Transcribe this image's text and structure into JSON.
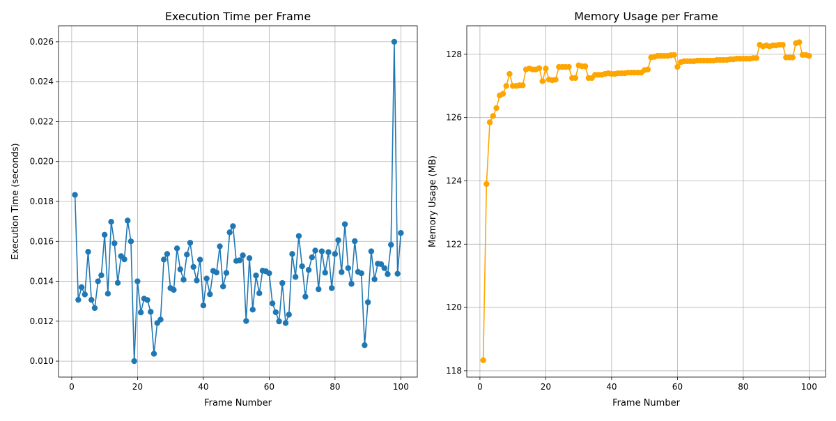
{
  "chart_data": [
    {
      "type": "line",
      "title": "Execution Time per Frame",
      "xlabel": "Frame Number",
      "ylabel": "Execution Time (seconds)",
      "xlim": [
        -4,
        105
      ],
      "ylim": [
        0.0092,
        0.0268
      ],
      "xticks": [
        0,
        20,
        40,
        60,
        80,
        100
      ],
      "xtick_labels": [
        "0",
        "20",
        "40",
        "60",
        "80",
        "100"
      ],
      "yticks": [
        0.01,
        0.012,
        0.014,
        0.016,
        0.018,
        0.02,
        0.022,
        0.024,
        0.026
      ],
      "ytick_labels": [
        "0.010",
        "0.012",
        "0.014",
        "0.016",
        "0.018",
        "0.020",
        "0.022",
        "0.024",
        "0.026"
      ],
      "grid": true,
      "color": "#1f77b4",
      "marker": "circle",
      "x": [
        1,
        2,
        3,
        4,
        5,
        6,
        7,
        8,
        9,
        10,
        11,
        12,
        13,
        14,
        15,
        16,
        17,
        18,
        19,
        20,
        21,
        22,
        23,
        24,
        25,
        26,
        27,
        28,
        29,
        30,
        31,
        32,
        33,
        34,
        35,
        36,
        37,
        38,
        39,
        40,
        41,
        42,
        43,
        44,
        45,
        46,
        47,
        48,
        49,
        50,
        51,
        52,
        53,
        54,
        55,
        56,
        57,
        58,
        59,
        60,
        61,
        62,
        63,
        64,
        65,
        66,
        67,
        68,
        69,
        70,
        71,
        72,
        73,
        74,
        75,
        76,
        77,
        78,
        79,
        80,
        81,
        82,
        83,
        84,
        85,
        86,
        87,
        88,
        89,
        90,
        91,
        92,
        93,
        94,
        95,
        96,
        97,
        98,
        99,
        100
      ],
      "y": [
        0.01833,
        0.01307,
        0.0137,
        0.01334,
        0.01548,
        0.01307,
        0.01266,
        0.014,
        0.0143,
        0.01633,
        0.01338,
        0.01698,
        0.0159,
        0.01392,
        0.01526,
        0.0151,
        0.01704,
        0.016,
        0.01,
        0.014,
        0.01244,
        0.01313,
        0.01306,
        0.01247,
        0.01037,
        0.01191,
        0.01208,
        0.01509,
        0.01537,
        0.01366,
        0.01357,
        0.01565,
        0.0146,
        0.01408,
        0.01534,
        0.01593,
        0.01472,
        0.01404,
        0.01508,
        0.01279,
        0.01414,
        0.01335,
        0.01452,
        0.01444,
        0.01575,
        0.01374,
        0.01442,
        0.01645,
        0.01676,
        0.01502,
        0.01505,
        0.0153,
        0.01201,
        0.01516,
        0.01258,
        0.01429,
        0.0134,
        0.01453,
        0.0145,
        0.0144,
        0.01289,
        0.01245,
        0.01199,
        0.01391,
        0.01191,
        0.01233,
        0.01537,
        0.01422,
        0.01627,
        0.01475,
        0.01323,
        0.01457,
        0.0152,
        0.01554,
        0.0136,
        0.0155,
        0.01443,
        0.01546,
        0.01366,
        0.01537,
        0.01606,
        0.01446,
        0.01686,
        0.01466,
        0.01387,
        0.01601,
        0.01447,
        0.0144,
        0.0108,
        0.01295,
        0.0155,
        0.0141,
        0.01488,
        0.01486,
        0.01466,
        0.01436,
        0.01583,
        0.026,
        0.01438,
        0.01642
      ]
    },
    {
      "type": "line",
      "title": "Memory Usage per Frame",
      "xlabel": "Frame Number",
      "ylabel": "Memory Usage (MB)",
      "xlim": [
        -4,
        105
      ],
      "ylim": [
        117.8,
        128.9
      ],
      "xticks": [
        0,
        20,
        40,
        60,
        80,
        100
      ],
      "xtick_labels": [
        "0",
        "20",
        "40",
        "60",
        "80",
        "100"
      ],
      "yticks": [
        118,
        120,
        122,
        124,
        126,
        128
      ],
      "ytick_labels": [
        "118",
        "120",
        "122",
        "124",
        "126",
        "128"
      ],
      "grid": true,
      "color": "#ffa500",
      "marker": "circle",
      "x": [
        1,
        2,
        3,
        4,
        5,
        6,
        7,
        8,
        9,
        10,
        11,
        12,
        13,
        14,
        15,
        16,
        17,
        18,
        19,
        20,
        21,
        22,
        23,
        24,
        25,
        26,
        27,
        28,
        29,
        30,
        31,
        32,
        33,
        34,
        35,
        36,
        37,
        38,
        39,
        40,
        41,
        42,
        43,
        44,
        45,
        46,
        47,
        48,
        49,
        50,
        51,
        52,
        53,
        54,
        55,
        56,
        57,
        58,
        59,
        60,
        61,
        62,
        63,
        64,
        65,
        66,
        67,
        68,
        69,
        70,
        71,
        72,
        73,
        74,
        75,
        76,
        77,
        78,
        79,
        80,
        81,
        82,
        83,
        84,
        85,
        86,
        87,
        88,
        89,
        90,
        91,
        92,
        93,
        94,
        95,
        96,
        97,
        98,
        99,
        100
      ],
      "y": [
        118.33,
        123.9,
        125.85,
        126.05,
        126.3,
        126.7,
        126.75,
        127.0,
        127.38,
        127.0,
        127.0,
        127.02,
        127.02,
        127.52,
        127.55,
        127.52,
        127.52,
        127.56,
        127.15,
        127.55,
        127.2,
        127.18,
        127.2,
        127.6,
        127.6,
        127.6,
        127.6,
        127.25,
        127.25,
        127.65,
        127.62,
        127.62,
        127.25,
        127.25,
        127.35,
        127.35,
        127.35,
        127.38,
        127.4,
        127.38,
        127.38,
        127.4,
        127.4,
        127.4,
        127.42,
        127.42,
        127.42,
        127.42,
        127.42,
        127.5,
        127.52,
        127.9,
        127.92,
        127.95,
        127.95,
        127.95,
        127.95,
        127.97,
        127.98,
        127.6,
        127.75,
        127.78,
        127.78,
        127.78,
        127.78,
        127.8,
        127.8,
        127.8,
        127.8,
        127.8,
        127.8,
        127.82,
        127.82,
        127.82,
        127.82,
        127.84,
        127.84,
        127.86,
        127.86,
        127.86,
        127.86,
        127.86,
        127.88,
        127.88,
        128.3,
        128.25,
        128.28,
        128.25,
        128.28,
        128.28,
        128.3,
        128.3,
        127.9,
        127.9,
        127.9,
        128.35,
        128.38,
        127.98,
        127.98,
        127.95
      ]
    }
  ]
}
